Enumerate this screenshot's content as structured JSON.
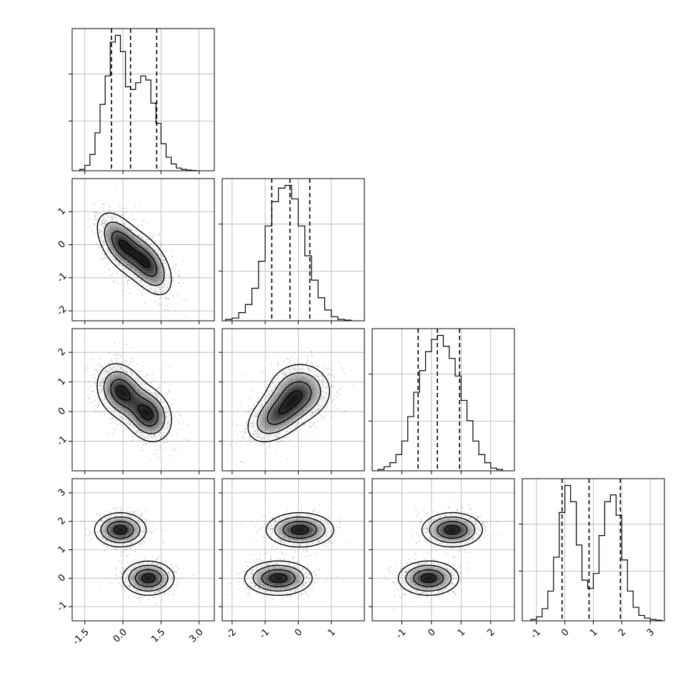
{
  "chart_data": {
    "type": "corner",
    "dims": [
      {
        "range": [
          -2.0,
          3.6
        ],
        "ticks": [
          -1.5,
          0.0,
          1.5,
          3.0
        ],
        "tick_labels": [
          "-1.5",
          "0.0",
          "1.5",
          "3.0"
        ],
        "quantiles": [
          -0.45,
          0.3,
          1.33
        ],
        "hist": {
          "edges": [
            -1.7,
            -1.5,
            -1.3,
            -1.1,
            -0.9,
            -0.7,
            -0.5,
            -0.3,
            -0.1,
            0.1,
            0.3,
            0.5,
            0.7,
            0.9,
            1.1,
            1.3,
            1.5,
            1.7,
            1.9,
            2.1,
            2.3,
            2.5,
            2.7,
            2.9
          ],
          "counts": [
            0.01,
            0.04,
            0.12,
            0.28,
            0.49,
            0.7,
            0.95,
            1.0,
            0.88,
            0.62,
            0.6,
            0.65,
            0.7,
            0.67,
            0.5,
            0.35,
            0.2,
            0.1,
            0.05,
            0.02,
            0.01,
            0.005,
            0.002
          ]
        }
      },
      {
        "range": [
          -2.3,
          2.0
        ],
        "ticks": [
          -2,
          -1,
          0,
          1
        ],
        "tick_labels": [
          "-2",
          "-1",
          "0",
          "1"
        ],
        "quantiles": [
          -0.8,
          -0.25,
          0.35
        ],
        "hist": {
          "edges": [
            -2.2,
            -2.0,
            -1.8,
            -1.6,
            -1.4,
            -1.2,
            -1.0,
            -0.8,
            -0.6,
            -0.4,
            -0.2,
            0.0,
            0.2,
            0.4,
            0.6,
            0.8,
            1.0,
            1.2,
            1.4,
            1.6
          ],
          "counts": [
            0.01,
            0.02,
            0.06,
            0.12,
            0.24,
            0.44,
            0.7,
            0.88,
            0.98,
            1.0,
            0.9,
            0.7,
            0.48,
            0.3,
            0.17,
            0.08,
            0.03,
            0.01,
            0.005
          ]
        }
      },
      {
        "range": [
          -2.0,
          2.8
        ],
        "ticks": [
          -1,
          0,
          1,
          2
        ],
        "tick_labels": [
          "-1",
          "0",
          "1",
          "2"
        ],
        "quantiles": [
          -0.45,
          0.2,
          0.95
        ],
        "hist": {
          "edges": [
            -1.8,
            -1.6,
            -1.4,
            -1.2,
            -1.0,
            -0.8,
            -0.6,
            -0.4,
            -0.2,
            0.0,
            0.2,
            0.4,
            0.6,
            0.8,
            1.0,
            1.2,
            1.4,
            1.6,
            1.8,
            2.0,
            2.2,
            2.4
          ],
          "counts": [
            0.01,
            0.03,
            0.06,
            0.12,
            0.22,
            0.4,
            0.58,
            0.74,
            0.88,
            0.97,
            1.0,
            0.92,
            0.83,
            0.7,
            0.52,
            0.37,
            0.22,
            0.12,
            0.06,
            0.02,
            0.01
          ]
        }
      },
      {
        "range": [
          -1.5,
          3.5
        ],
        "ticks": [
          -1,
          0,
          1,
          2,
          3
        ],
        "tick_labels": [
          "-1",
          "0",
          "1",
          "2",
          "3"
        ],
        "quantiles": [
          -0.1,
          0.85,
          1.95
        ],
        "hist": {
          "edges": [
            -1.2,
            -1.0,
            -0.8,
            -0.6,
            -0.4,
            -0.2,
            0.0,
            0.2,
            0.4,
            0.6,
            0.8,
            1.0,
            1.2,
            1.4,
            1.6,
            1.8,
            2.0,
            2.2,
            2.4,
            2.6,
            2.8,
            3.0,
            3.2,
            3.4
          ],
          "counts": [
            0.01,
            0.03,
            0.09,
            0.22,
            0.47,
            0.8,
            1.0,
            0.88,
            0.56,
            0.3,
            0.24,
            0.35,
            0.63,
            0.88,
            0.93,
            0.78,
            0.45,
            0.22,
            0.1,
            0.04,
            0.02,
            0.01,
            0.005
          ]
        }
      }
    ],
    "mixture": {
      "weights": [
        0.5,
        0.5
      ],
      "means": [
        [
          -0.1,
          0.05,
          0.7,
          1.7
        ],
        [
          1.0,
          -0.6,
          -0.1,
          0.0
        ]
      ],
      "covariances": [
        [
          [
            0.26,
            -0.13,
            -0.05,
            0.0
          ],
          [
            -0.13,
            0.26,
            0.0,
            0.0
          ],
          [
            -0.05,
            0.0,
            0.26,
            0.0
          ],
          [
            0.0,
            0.0,
            0.0,
            0.09
          ]
        ],
        [
          [
            0.26,
            -0.13,
            -0.05,
            0.0
          ],
          [
            -0.13,
            0.26,
            0.12,
            0.0
          ],
          [
            -0.05,
            0.12,
            0.26,
            0.0
          ],
          [
            0.0,
            0.0,
            0.0,
            0.09
          ]
        ]
      ]
    },
    "contour_levels_sigma": [
      0.5,
      1.0,
      1.5,
      2.0
    ],
    "grid": true
  }
}
